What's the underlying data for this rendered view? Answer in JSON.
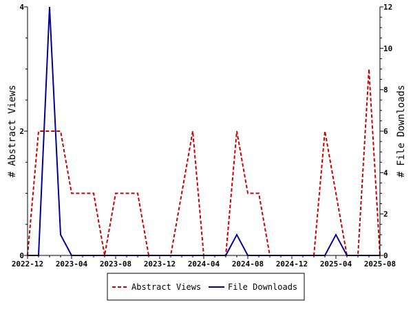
{
  "chart_data": {
    "type": "line",
    "x": [
      "2022-12",
      "2023-01",
      "2023-02",
      "2023-03",
      "2023-04",
      "2023-05",
      "2023-06",
      "2023-07",
      "2023-08",
      "2023-09",
      "2023-10",
      "2023-11",
      "2023-12",
      "2024-01",
      "2024-02",
      "2024-03",
      "2024-04",
      "2024-05",
      "2024-06",
      "2024-07",
      "2024-08",
      "2024-09",
      "2024-10",
      "2024-11",
      "2024-12",
      "2025-01",
      "2025-02",
      "2025-03",
      "2025-04",
      "2025-05",
      "2025-06",
      "2025-07",
      "2025-08"
    ],
    "x_tick_labels": [
      "2022-12",
      "2023-04",
      "2023-08",
      "2023-12",
      "2024-04",
      "2024-08",
      "2024-12",
      "2025-04",
      "2025-08"
    ],
    "series": [
      {
        "name": "Abstract Views",
        "axis": "left",
        "color": "#cc0000",
        "dash": "dashed",
        "values": [
          0,
          2,
          2,
          2,
          1,
          1,
          1,
          0,
          1,
          1,
          1,
          0,
          0,
          0,
          1,
          2,
          0,
          0,
          0,
          2,
          1,
          1,
          0,
          0,
          0,
          0,
          0,
          2,
          1,
          0,
          0,
          3,
          0
        ]
      },
      {
        "name": "File Downloads",
        "axis": "right",
        "color": "#000099",
        "dash": "solid",
        "values": [
          0,
          0,
          12,
          1,
          0,
          0,
          0,
          0,
          0,
          0,
          0,
          0,
          0,
          0,
          0,
          0,
          0,
          0,
          0,
          1,
          0,
          0,
          0,
          0,
          0,
          0,
          0,
          0,
          1,
          0,
          0,
          0,
          0
        ]
      }
    ],
    "ylabel_left": "# Abstract Views",
    "ylabel_right": "# File Downloads",
    "ylim_left": [
      0,
      4
    ],
    "ylim_right": [
      0,
      12
    ],
    "yticks_left": [
      "0",
      "2",
      "4"
    ],
    "yticks_right": [
      "0",
      "2",
      "4",
      "6",
      "8",
      "10",
      "12"
    ],
    "grid": false,
    "legend_position": "bottom"
  }
}
